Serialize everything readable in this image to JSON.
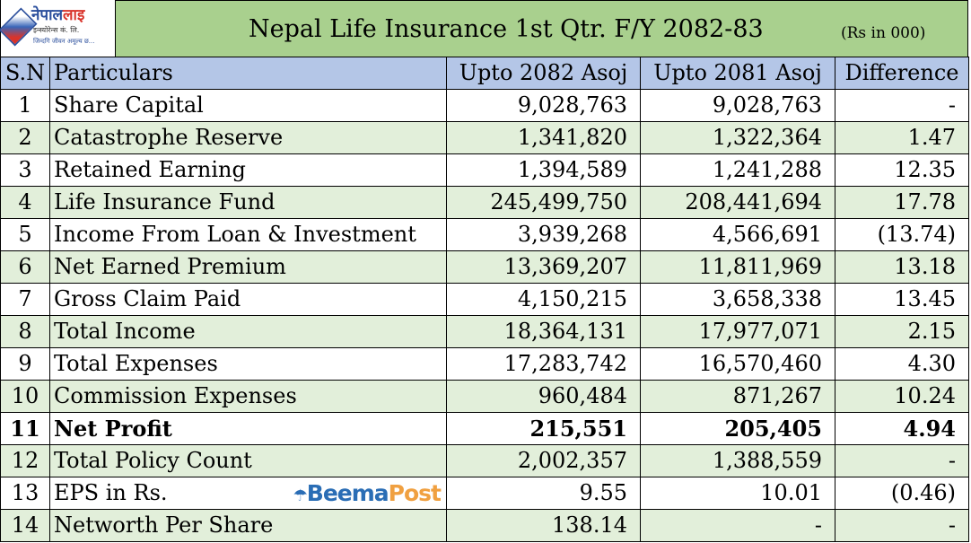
{
  "logo": {
    "name_a": "नेपाल",
    "name_b": "लाइ",
    "sub": "इन्स्योरेन्स कं. लि.",
    "tagline": "जिन्दगि जीवन अमूल्य छ..."
  },
  "title": "Nepal Life Insurance 1st Qtr. F/Y 2082-83",
  "unit": "(Rs in 000)",
  "watermark": {
    "a": "Beema",
    "b": "Post"
  },
  "colors": {
    "title_bg": "#a9d08e",
    "header_bg": "#b4c6e7",
    "alt_row_bg": "#e2efda"
  },
  "columns": [
    "S.N",
    "Particulars",
    "Upto 2082 Asoj",
    "Upto 2081 Asoj",
    "Difference"
  ],
  "rows": [
    [
      "1",
      "Share Capital",
      "9,028,763",
      "9,028,763",
      "-"
    ],
    [
      "2",
      "Catastrophe Reserve",
      "1,341,820",
      "1,322,364",
      "1.47"
    ],
    [
      "3",
      "Retained Earning",
      "1,394,589",
      "1,241,288",
      "12.35"
    ],
    [
      "4",
      "Life Insurance Fund",
      "245,499,750",
      "208,441,694",
      "17.78"
    ],
    [
      "5",
      "Income From Loan & Investment",
      "3,939,268",
      "4,566,691",
      "(13.74)"
    ],
    [
      "6",
      "Net Earned Premium",
      "13,369,207",
      "11,811,969",
      "13.18"
    ],
    [
      "7",
      "Gross Claim Paid",
      "4,150,215",
      "3,658,338",
      "13.45"
    ],
    [
      "8",
      "Total Income",
      "18,364,131",
      "17,977,071",
      "2.15"
    ],
    [
      "9",
      "Total Expenses",
      "17,283,742",
      "16,570,460",
      "4.30"
    ],
    [
      "10",
      "Commission Expenses",
      "960,484",
      "871,267",
      "10.24"
    ],
    [
      "11",
      "Net Profit",
      "215,551",
      "205,405",
      "4.94"
    ],
    [
      "12",
      "Total Policy Count",
      "2,002,357",
      "1,388,559",
      "-"
    ],
    [
      "13",
      "EPS in Rs.",
      "9.55",
      "10.01",
      "(0.46)"
    ],
    [
      "14",
      "Networth Per Share",
      "138.14",
      "-",
      "-"
    ]
  ]
}
